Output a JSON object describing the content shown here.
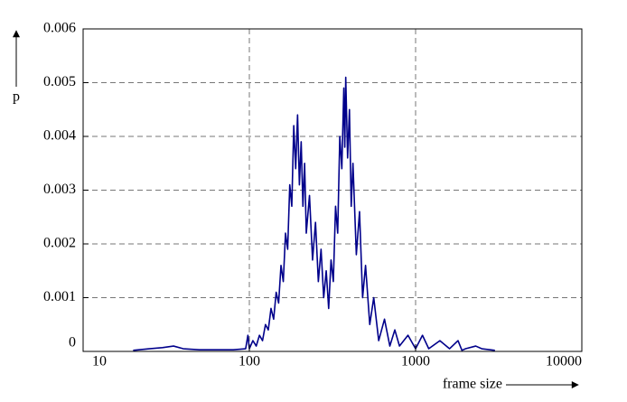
{
  "chart_data": {
    "type": "line",
    "log_x": true,
    "grid": true,
    "x_label": "frame size",
    "y_label": "p",
    "xlim": [
      10,
      10000
    ],
    "xticks": [
      10,
      100,
      1000,
      10000
    ],
    "ylim": [
      0,
      0.006
    ],
    "yticks": [
      0,
      0.001,
      0.002,
      0.003,
      0.004,
      0.005,
      0.006
    ],
    "x": [
      20,
      25,
      30,
      35,
      40,
      50,
      60,
      80,
      95,
      98,
      100,
      105,
      110,
      115,
      120,
      125,
      130,
      135,
      140,
      145,
      150,
      155,
      160,
      165,
      170,
      175,
      180,
      185,
      190,
      195,
      200,
      205,
      210,
      215,
      220,
      230,
      240,
      250,
      260,
      270,
      280,
      290,
      300,
      310,
      320,
      330,
      340,
      350,
      360,
      370,
      375,
      380,
      390,
      400,
      410,
      420,
      440,
      460,
      480,
      500,
      530,
      560,
      600,
      650,
      700,
      750,
      800,
      900,
      1000,
      1100,
      1200,
      1400,
      1600,
      1800,
      1900,
      2000,
      2300,
      2500,
      3000
    ],
    "series": [
      {
        "color": "#00008b",
        "values": [
          2e-05,
          5e-05,
          7e-05,
          0.0001,
          5e-05,
          3e-05,
          3e-05,
          3e-05,
          5e-05,
          0.0003,
          5e-05,
          0.0002,
          0.0001,
          0.0003,
          0.0002,
          0.0005,
          0.0004,
          0.0008,
          0.0006,
          0.0011,
          0.0009,
          0.0016,
          0.0013,
          0.0022,
          0.0019,
          0.0031,
          0.0027,
          0.0042,
          0.0034,
          0.0044,
          0.0031,
          0.0039,
          0.0027,
          0.0035,
          0.0022,
          0.0029,
          0.0017,
          0.0024,
          0.0013,
          0.0019,
          0.001,
          0.0015,
          0.0008,
          0.0017,
          0.0013,
          0.0027,
          0.0022,
          0.004,
          0.0034,
          0.0049,
          0.0038,
          0.0051,
          0.0036,
          0.0045,
          0.0027,
          0.0035,
          0.0018,
          0.0026,
          0.001,
          0.0016,
          0.0005,
          0.001,
          0.0002,
          0.0006,
          0.0001,
          0.0004,
          0.0001,
          0.0003,
          5e-05,
          0.0003,
          5e-05,
          0.0002,
          5e-05,
          0.0002,
          2e-05,
          5e-05,
          0.0001,
          5e-05,
          2e-05
        ]
      }
    ]
  }
}
